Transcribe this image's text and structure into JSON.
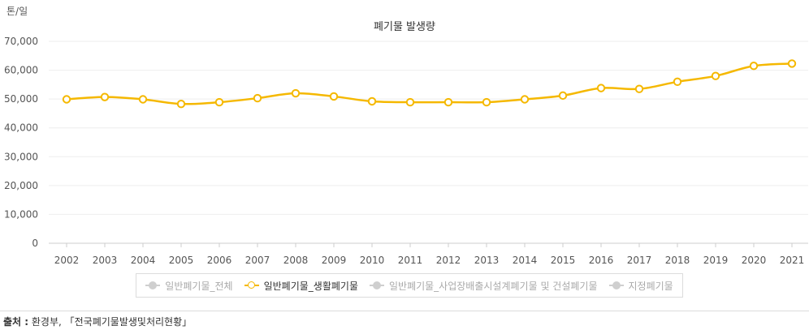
{
  "chart_data": {
    "type": "line",
    "title": "폐기물 발생량",
    "ylabel": "톤/일",
    "xlabel": "",
    "ylim": [
      0,
      70000
    ],
    "y_ticks": [
      "0",
      "10,000",
      "20,000",
      "30,000",
      "40,000",
      "50,000",
      "60,000",
      "70,000"
    ],
    "y_tick_values": [
      0,
      10000,
      20000,
      30000,
      40000,
      50000,
      60000,
      70000
    ],
    "categories": [
      "2002",
      "2003",
      "2004",
      "2005",
      "2006",
      "2007",
      "2008",
      "2009",
      "2010",
      "2011",
      "2012",
      "2013",
      "2014",
      "2015",
      "2016",
      "2017",
      "2018",
      "2019",
      "2020",
      "2021"
    ],
    "series": [
      {
        "name": "일반폐기물_생활폐기물",
        "color": "#f5b800",
        "values": [
          49900,
          50700,
          49900,
          48300,
          48900,
          50300,
          52000,
          50900,
          49200,
          48900,
          48900,
          48900,
          49900,
          51200,
          53800,
          53500,
          56000,
          58000,
          61500,
          62300
        ]
      }
    ],
    "grid": true,
    "legend_position": "bottom"
  },
  "legend": {
    "items": [
      {
        "label": "일반폐기물_전체",
        "active": false
      },
      {
        "label": "일반폐기물_생활폐기물",
        "active": true
      },
      {
        "label": "일반폐기물_사업장배출시설계폐기물 및 건설폐기물",
        "active": false
      },
      {
        "label": "지정폐기물",
        "active": false
      }
    ]
  },
  "source": {
    "label": "출처 :",
    "text": " 환경부, 「전국폐기물발생및처리현황」"
  }
}
